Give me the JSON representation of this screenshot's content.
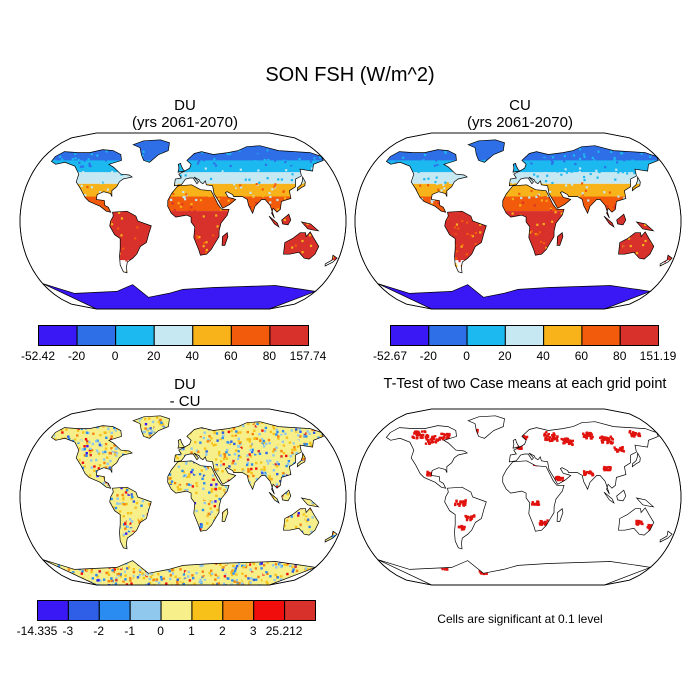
{
  "title": "SON FSH (W/m^2)",
  "panels": [
    {
      "id": "du",
      "title_line1": "DU",
      "title_line2": "(yrs 2061-2070)",
      "colorbar": {
        "colors": [
          "#3a17f5",
          "#2e6fe8",
          "#1cb8f0",
          "#c6e8f2",
          "#f7b319",
          "#f25a0c",
          "#d8302b"
        ],
        "labels": [
          "-52.42",
          "-20",
          "0",
          "20",
          "40",
          "60",
          "80",
          "157.74"
        ]
      }
    },
    {
      "id": "cu",
      "title_line1": "CU",
      "title_line2": "(yrs 2061-2070)",
      "colorbar": {
        "colors": [
          "#3a17f5",
          "#2e6fe8",
          "#1cb8f0",
          "#c6e8f2",
          "#f7b319",
          "#f25a0c",
          "#d8302b"
        ],
        "labels": [
          "-52.67",
          "-20",
          "0",
          "20",
          "40",
          "60",
          "80",
          "151.19"
        ]
      }
    },
    {
      "id": "diff",
      "title_line1": "DU",
      "title_line2": "- CU",
      "colorbar": {
        "colors": [
          "#3a17f5",
          "#2e5fe6",
          "#2a8cf0",
          "#8fc8ec",
          "#f7f08a",
          "#f7c11a",
          "#f7830f",
          "#f20d0d",
          "#d8302b"
        ],
        "labels": [
          "-14.335",
          "-3",
          "-2",
          "-1",
          "0",
          "1",
          "2",
          "3",
          "25.212"
        ]
      }
    },
    {
      "id": "ttest",
      "title_line1": "T-Test of two Case means at each grid point",
      "note": "Cells are significant at 0.1 level",
      "significant_color": "#e0120d"
    }
  ]
}
